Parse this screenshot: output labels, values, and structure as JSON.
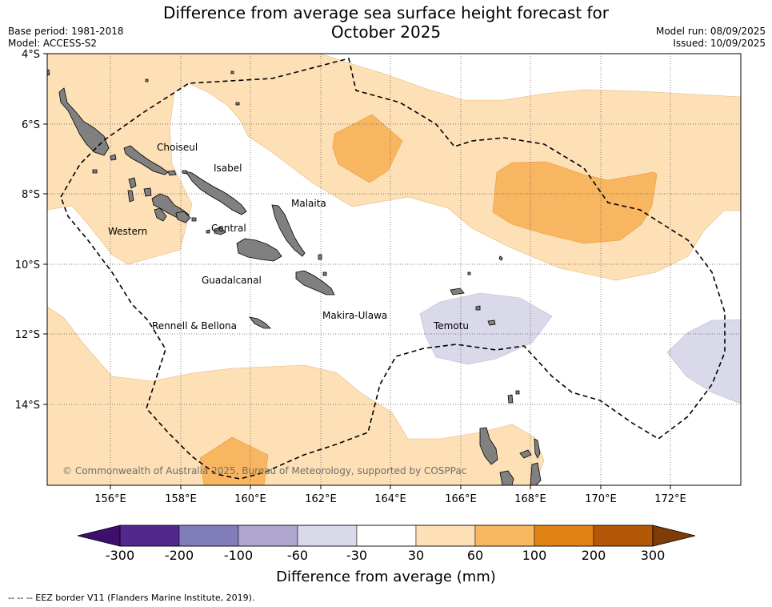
{
  "title_line1": "Difference from average sea surface height forecast for",
  "title_line2": "October 2025",
  "meta_left": [
    "Base period: 1981-2018",
    "Model: ACCESS-S2"
  ],
  "meta_right": [
    "Model run: 08/09/2025",
    "Issued: 10/09/2025"
  ],
  "map": {
    "lat_labels": [
      "4°S",
      "6°S",
      "8°S",
      "10°S",
      "12°S",
      "14°S"
    ],
    "lat_values": [
      -4,
      -6,
      -8,
      -10,
      -12,
      -14
    ],
    "lon_labels": [
      "156°E",
      "158°E",
      "160°E",
      "162°E",
      "164°E",
      "166°E",
      "168°E",
      "170°E",
      "172°E"
    ],
    "lon_values": [
      156,
      158,
      160,
      162,
      164,
      166,
      168,
      170,
      172
    ],
    "extent": {
      "lon_min": 154.2,
      "lon_max": 174.0,
      "lat_max": -4.0,
      "lat_min": -16.3
    },
    "places": [
      {
        "name": "Choiseul",
        "lon": 157.3,
        "lat": -6.75
      },
      {
        "name": "Isabel",
        "lon": 159.0,
        "lat": -7.35
      },
      {
        "name": "Malaita",
        "lon": 161.0,
        "lat": -8.3
      },
      {
        "name": "Western",
        "lon": 155.9,
        "lat": -9.15
      },
      {
        "name": "Central",
        "lon": 159.0,
        "lat": -8.95
      },
      {
        "name": "Guadalcanal",
        "lon": 158.9,
        "lat": -10.5
      },
      {
        "name": "Makira-Ulawa",
        "lon": 162.0,
        "lat": -11.55
      },
      {
        "name": "Rennell & Bellona",
        "lon": 157.0,
        "lat": -11.85
      },
      {
        "name": "Temotu",
        "lon": 165.1,
        "lat": -11.85
      }
    ],
    "copyright": "© Commonwealth of Australia 2025, Bureau of Meteorology, supported by COSPPac",
    "colors": {
      "land": "#808080",
      "light_orange": "#fde0b6",
      "mid_orange": "#f9b661",
      "light_purple": "#d9d9ea"
    }
  },
  "colorbar": {
    "ticks": [
      "-300",
      "-200",
      "-100",
      "-60",
      "-30",
      "30",
      "60",
      "100",
      "200",
      "300"
    ],
    "colors": [
      "#3f0f6f",
      "#54278f",
      "#807dba",
      "#b0a7d0",
      "#d9d9ea",
      "#ffffff",
      "#fde0b6",
      "#f9b661",
      "#e08214",
      "#b35806",
      "#7f3b08"
    ],
    "title": "Difference from average (mm)"
  },
  "footnote": "--  --  -- EEZ border V11 (Flanders Marine Institute, 2019)."
}
